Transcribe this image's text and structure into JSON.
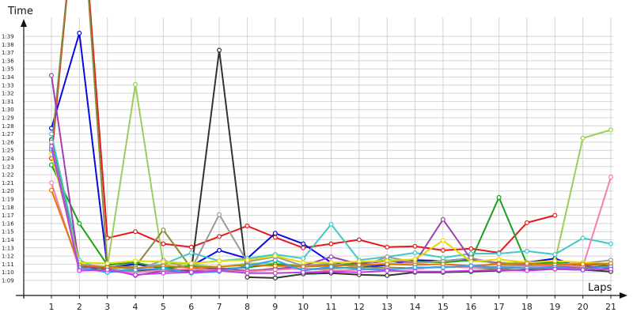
{
  "chart_data": {
    "type": "line",
    "xlabel": "Laps",
    "ylabel": "Time",
    "xlim": [
      1,
      21
    ],
    "ylim_seconds": [
      68,
      100
    ],
    "x": [
      1,
      2,
      3,
      4,
      5,
      6,
      7,
      8,
      9,
      10,
      11,
      12,
      13,
      14,
      15,
      16,
      17,
      18,
      19,
      20,
      21
    ],
    "x_tick_labels": [
      "1",
      "2",
      "3",
      "4",
      "5",
      "6",
      "7",
      "8",
      "9",
      "10",
      "11",
      "12",
      "13",
      "14",
      "15",
      "16",
      "17",
      "18",
      "19",
      "20",
      "21"
    ],
    "y_tick_labels": [
      "1:09",
      "1:10",
      "1:11",
      "1:12",
      "1:13",
      "1:14",
      "1:15",
      "1:16",
      "1:17",
      "1:18",
      "1:19",
      "1:20",
      "1:21",
      "1:22",
      "1:23",
      "1:24",
      "1:25",
      "1:26",
      "1:27",
      "1:28",
      "1:29",
      "1:30",
      "1:31",
      "1:32",
      "1:33",
      "1:34",
      "1:35",
      "1:36",
      "1:37",
      "1:38",
      "1:39"
    ],
    "y_tick_seconds": [
      69,
      70,
      71,
      72,
      73,
      74,
      75,
      76,
      77,
      78,
      79,
      80,
      81,
      82,
      83,
      84,
      85,
      86,
      87,
      88,
      89,
      90,
      91,
      92,
      93,
      94,
      95,
      96,
      97,
      98,
      99
    ],
    "grid": true,
    "series": [
      {
        "color": "#e41a1c",
        "values": [
          84.0,
          120.0,
          74.2,
          75.0,
          73.5,
          73.1,
          74.4,
          75.7,
          74.3,
          73.0,
          73.5,
          74.0,
          73.1,
          73.2,
          72.7,
          72.9,
          72.4,
          76.1,
          77.0,
          null,
          null
        ]
      },
      {
        "color": "#0a0ae0",
        "values": [
          87.7,
          99.4,
          70.6,
          71.0,
          70.5,
          70.8,
          72.7,
          71.7,
          74.8,
          73.5,
          71.2,
          70.6,
          70.9,
          71.5,
          71.4,
          71.7,
          71.1,
          71.2,
          71.7,
          70.5,
          70.9
        ]
      },
      {
        "color": "#9acd5a",
        "values": [
          85.7,
          71.0,
          70.7,
          93.1,
          71.0,
          71.0,
          70.6,
          71.1,
          71.1,
          70.8,
          71.0,
          70.8,
          71.1,
          71.0,
          71.5,
          71.4,
          71.2,
          71.1,
          71.3,
          86.5,
          87.5
        ]
      },
      {
        "color": "#8a8a3a",
        "values": [
          85.0,
          120.0,
          70.7,
          70.7,
          75.2,
          70.5,
          70.3,
          70.1,
          70.5,
          70.4,
          70.5,
          70.6,
          70.6,
          70.5,
          70.7,
          70.6,
          70.4,
          70.6,
          70.7,
          70.6,
          70.8
        ]
      },
      {
        "color": "#333333",
        "values": [
          86.3,
          70.4,
          70.4,
          70.1,
          70.5,
          70.2,
          97.3,
          69.4,
          69.3,
          69.8,
          69.9,
          69.7,
          69.6,
          70.0,
          70.0,
          70.1,
          70.2,
          70.3,
          70.4,
          70.3,
          70.1
        ]
      },
      {
        "color": "#1aa01a",
        "values": [
          83.2,
          76.0,
          70.9,
          71.2,
          70.5,
          70.8,
          70.4,
          70.6,
          71.0,
          70.7,
          70.9,
          71.1,
          71.5,
          71.3,
          71.2,
          71.5,
          79.2,
          71.0,
          71.2,
          70.9,
          71.0
        ]
      },
      {
        "color": "#40c8c8",
        "values": [
          87.0,
          71.5,
          70.0,
          70.5,
          71.0,
          72.4,
          71.4,
          71.7,
          72.2,
          71.7,
          75.9,
          71.5,
          71.9,
          72.4,
          71.8,
          72.3,
          72.3,
          72.6,
          72.2,
          74.2,
          73.5
        ]
      },
      {
        "color": "#a040b0",
        "values": [
          94.2,
          70.7,
          70.5,
          69.6,
          70.2,
          70.1,
          70.5,
          70.2,
          70.4,
          70.8,
          71.9,
          71.0,
          71.4,
          71.2,
          76.5,
          71.6,
          71.1,
          70.9,
          70.5,
          70.8,
          70.5
        ]
      },
      {
        "color": "#9a9a9a",
        "values": [
          86.0,
          70.3,
          70.3,
          70.2,
          71.5,
          70.4,
          77.1,
          71.3,
          71.9,
          70.8,
          71.1,
          70.6,
          71.9,
          71.2,
          71.3,
          71.8,
          70.9,
          70.8,
          71.0,
          71.1,
          71.5
        ]
      },
      {
        "color": "#f080b0",
        "values": [
          81.0,
          70.4,
          70.1,
          70.0,
          70.3,
          70.4,
          70.2,
          70.1,
          70.3,
          70.5,
          70.2,
          70.3,
          70.5,
          70.4,
          70.7,
          70.6,
          70.7,
          70.6,
          70.9,
          70.7,
          81.7
        ]
      },
      {
        "color": "#e8d800",
        "values": [
          84.5,
          71.2,
          71.1,
          71.4,
          71.3,
          71.1,
          71.4,
          71.5,
          72.0,
          71.2,
          71.2,
          71.3,
          71.4,
          71.6,
          73.9,
          71.3,
          71.6,
          71.2,
          71.4,
          71.2,
          71.0
        ]
      },
      {
        "color": "#e07800",
        "values": [
          80.1,
          70.9,
          70.6,
          70.5,
          70.8,
          70.6,
          70.7,
          70.9,
          70.8,
          70.7,
          70.8,
          70.9,
          71.0,
          70.9,
          71.0,
          70.8,
          71.0,
          71.1,
          70.9,
          71.0,
          71.1
        ]
      },
      {
        "color": "#30a0f0",
        "values": [
          85.2,
          70.6,
          70.0,
          70.3,
          70.5,
          69.9,
          70.1,
          70.8,
          71.5,
          70.2,
          70.7,
          70.4,
          70.3,
          70.6,
          70.6,
          70.8,
          70.6,
          70.5,
          70.6,
          70.4,
          70.7
        ]
      },
      {
        "color": "#c040e0",
        "values": [
          85.5,
          70.2,
          70.3,
          69.7,
          69.9,
          70.0,
          70.2,
          69.9,
          69.9,
          70.0,
          70.1,
          70.0,
          70.2,
          70.1,
          70.1,
          70.2,
          70.3,
          70.2,
          70.4,
          70.3,
          70.4
        ]
      }
    ]
  }
}
